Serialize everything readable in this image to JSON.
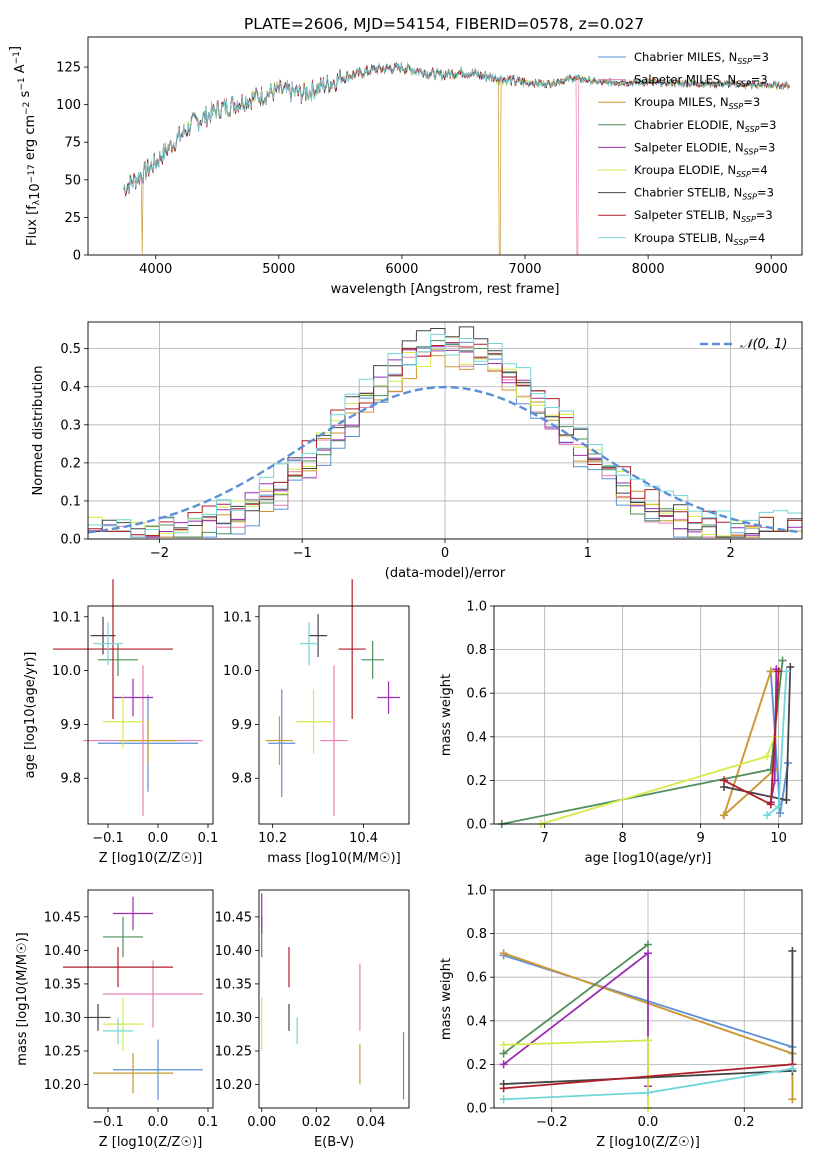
{
  "figure": {
    "title": "PLATE=2606, MJD=54154, FIBERID=0578, z=0.027"
  },
  "models": [
    {
      "name": "Chabrier MILES",
      "nssp": "3",
      "color": "#5b8fd6"
    },
    {
      "name": "Salpeter MILES",
      "nssp": "3",
      "color": "#e87fb3"
    },
    {
      "name": "Kroupa MILES",
      "nssp": "3",
      "color": "#c99a2e"
    },
    {
      "name": "Chabrier ELODIE",
      "nssp": "3",
      "color": "#4f8f5a"
    },
    {
      "name": "Salpeter ELODIE",
      "nssp": "3",
      "color": "#9b2eb3"
    },
    {
      "name": "Kroupa ELODIE",
      "nssp": "4",
      "color": "#d7ea4a"
    },
    {
      "name": "Chabrier STELIB",
      "nssp": "3",
      "color": "#444444"
    },
    {
      "name": "Salpeter STELIB",
      "nssp": "3",
      "color": "#b01e2a"
    },
    {
      "name": "Kroupa STELIB",
      "nssp": "4",
      "color": "#72d6d8"
    }
  ],
  "chart_data": [
    {
      "id": "spectrum",
      "type": "line",
      "xlabel": "wavelength [Angstrom, rest frame]",
      "ylabel": "Flux [f_λ 10^-17 erg cm^-2 s^-1 A^-1]",
      "xlim": [
        3450,
        9250
      ],
      "ylim": [
        0,
        145
      ],
      "xticks": [
        4000,
        5000,
        6000,
        7000,
        8000,
        9000
      ],
      "yticks": [
        0,
        25,
        50,
        75,
        100,
        125
      ],
      "wave_range": [
        3740,
        9150
      ],
      "continuum": [
        [
          3740,
          45
        ],
        [
          3900,
          55
        ],
        [
          4000,
          62
        ],
        [
          4100,
          72
        ],
        [
          4300,
          88
        ],
        [
          4500,
          97
        ],
        [
          4700,
          103
        ],
        [
          5000,
          110
        ],
        [
          5200,
          108
        ],
        [
          5500,
          118
        ],
        [
          5800,
          124
        ],
        [
          6000,
          125
        ],
        [
          6300,
          120
        ],
        [
          6500,
          122
        ],
        [
          6700,
          119
        ],
        [
          7000,
          115
        ],
        [
          7200,
          114
        ],
        [
          7400,
          118
        ],
        [
          7600,
          115
        ],
        [
          8000,
          115
        ],
        [
          8500,
          114
        ],
        [
          9000,
          113
        ],
        [
          9150,
          113
        ]
      ],
      "dropouts": [
        {
          "x": 3890,
          "model": "Kroupa MILES"
        },
        {
          "x": 6795,
          "model": "Kroupa MILES"
        },
        {
          "x": 7425,
          "model": "Salpeter MILES"
        }
      ],
      "grid": false,
      "legend": "upper-right"
    },
    {
      "id": "residuals",
      "type": "histogram",
      "xlabel": "(data-model)/error",
      "ylabel": "Normed distribution",
      "xlim": [
        -2.5,
        2.5
      ],
      "ylim": [
        0,
        0.57
      ],
      "xticks": [
        -2,
        -1,
        0,
        1,
        2
      ],
      "yticks": [
        0,
        0.1,
        0.2,
        0.3,
        0.4,
        0.5
      ],
      "bin_width": 0.1,
      "gaussian_label": "𝒩(0, 1)",
      "grid": true,
      "legend": "upper-right"
    },
    {
      "id": "age_vs_Z",
      "type": "scatter",
      "xlabel": "Z [log10(Z/Z☉)]",
      "ylabel": "age [log10(age/yr)]",
      "xlim": [
        -0.14,
        0.11
      ],
      "ylim": [
        9.715,
        10.12
      ],
      "xticks": [
        -0.1,
        0.0,
        0.1
      ],
      "yticks": [
        9.8,
        9.9,
        10.0,
        10.1
      ],
      "points": [
        {
          "x": -0.02,
          "y": 9.865,
          "xerr": 0.1,
          "yerr": 0.09
        },
        {
          "x": -0.03,
          "y": 9.87,
          "xerr": 0.12,
          "yerr": 0.14
        },
        {
          "x": -0.02,
          "y": 9.87,
          "xerr": 0.06,
          "yerr": 0.04
        },
        {
          "x": -0.08,
          "y": 10.02,
          "xerr": 0.04,
          "yerr": 0.03
        },
        {
          "x": -0.05,
          "y": 9.95,
          "xerr": 0.04,
          "yerr": 0.035
        },
        {
          "x": -0.07,
          "y": 9.905,
          "xerr": 0.04,
          "yerr": 0.05
        },
        {
          "x": -0.11,
          "y": 10.065,
          "xerr": 0.025,
          "yerr": 0.035
        },
        {
          "x": -0.09,
          "y": 10.04,
          "xerr": 0.12,
          "yerr": 0.13
        },
        {
          "x": -0.1,
          "y": 10.05,
          "xerr": 0.03,
          "yerr": 0.04
        }
      ]
    },
    {
      "id": "age_vs_mass",
      "type": "scatter",
      "xlabel": "mass [log10(M/M☉)]",
      "ylabel": "",
      "xlim": [
        10.17,
        10.5
      ],
      "ylim": [
        9.715,
        10.12
      ],
      "xticks": [
        10.2,
        10.4
      ],
      "yticks": [
        9.8,
        9.9,
        10.0,
        10.1
      ],
      "points": [
        {
          "x": 10.22,
          "y": 9.865,
          "xerr": 0.03,
          "yerr": 0.1
        },
        {
          "x": 10.335,
          "y": 9.87,
          "xerr": 0.03,
          "yerr": 0.14
        },
        {
          "x": 10.215,
          "y": 9.87,
          "xerr": 0.03,
          "yerr": 0.045
        },
        {
          "x": 10.42,
          "y": 10.02,
          "xerr": 0.025,
          "yerr": 0.035
        },
        {
          "x": 10.455,
          "y": 9.95,
          "xerr": 0.025,
          "yerr": 0.03
        },
        {
          "x": 10.29,
          "y": 9.905,
          "xerr": 0.04,
          "yerr": 0.06
        },
        {
          "x": 10.3,
          "y": 10.065,
          "xerr": 0.02,
          "yerr": 0.04
        },
        {
          "x": 10.375,
          "y": 10.04,
          "xerr": 0.03,
          "yerr": 0.13
        },
        {
          "x": 10.28,
          "y": 10.05,
          "xerr": 0.02,
          "yerr": 0.04
        }
      ]
    },
    {
      "id": "weight_vs_age",
      "type": "line",
      "xlabel": "age [log10(age/yr)]",
      "ylabel": "mass weight",
      "xlim": [
        6.35,
        10.3
      ],
      "ylim": [
        0,
        1
      ],
      "xticks": [
        7,
        8,
        9,
        10
      ],
      "yticks": [
        0,
        0.2,
        0.4,
        0.6,
        0.8,
        1.0
      ],
      "grid": true,
      "series": [
        {
          "model": "Chabrier MILES",
          "x": [
            9.9,
            10.02,
            10.12
          ],
          "y": [
            0.7,
            0.05,
            0.28
          ]
        },
        {
          "model": "Salpeter MILES",
          "x": [
            9.9,
            9.3,
            9.95
          ],
          "y": [
            0.7,
            0.04,
            0.25
          ]
        },
        {
          "model": "Kroupa MILES",
          "x": [
            9.9,
            9.3,
            9.95
          ],
          "y": [
            0.7,
            0.04,
            0.25
          ]
        },
        {
          "model": "Chabrier ELODIE",
          "x": [
            6.45,
            9.9,
            10.05
          ],
          "y": [
            0.0,
            0.25,
            0.75
          ]
        },
        {
          "model": "Salpeter ELODIE",
          "x": [
            9.9,
            9.95,
            9.97
          ],
          "y": [
            0.1,
            0.2,
            0.71
          ]
        },
        {
          "model": "Kroupa ELODIE",
          "x": [
            6.95,
            9.85,
            9.95
          ],
          "y": [
            0.0,
            0.31,
            0.4
          ]
        },
        {
          "model": "Chabrier STELIB",
          "x": [
            9.3,
            10.1,
            10.15
          ],
          "y": [
            0.17,
            0.11,
            0.72
          ]
        },
        {
          "model": "Salpeter STELIB",
          "x": [
            9.3,
            9.9,
            10.0
          ],
          "y": [
            0.2,
            0.09,
            0.7
          ]
        },
        {
          "model": "Kroupa STELIB",
          "x": [
            9.85,
            10.0,
            10.1
          ],
          "y": [
            0.04,
            0.08,
            0.7
          ]
        }
      ]
    },
    {
      "id": "mass_vs_Z",
      "type": "scatter",
      "xlabel": "Z [log10(Z/Z☉)]",
      "ylabel": "mass [log10(M/M☉)]",
      "xlim": [
        -0.14,
        0.11
      ],
      "ylim": [
        10.165,
        10.49
      ],
      "xticks": [
        -0.1,
        0.0,
        0.1
      ],
      "yticks": [
        10.2,
        10.25,
        10.3,
        10.35,
        10.4,
        10.45
      ],
      "points": [
        {
          "x": -0.0,
          "y": 10.222,
          "xerr": 0.09,
          "yerr": 0.045
        },
        {
          "x": -0.01,
          "y": 10.335,
          "xerr": 0.1,
          "yerr": 0.05
        },
        {
          "x": -0.05,
          "y": 10.217,
          "xerr": 0.08,
          "yerr": 0.03
        },
        {
          "x": -0.07,
          "y": 10.42,
          "xerr": 0.04,
          "yerr": 0.03
        },
        {
          "x": -0.05,
          "y": 10.455,
          "xerr": 0.04,
          "yerr": 0.025
        },
        {
          "x": -0.07,
          "y": 10.29,
          "xerr": 0.04,
          "yerr": 0.04
        },
        {
          "x": -0.12,
          "y": 10.3,
          "xerr": 0.025,
          "yerr": 0.02
        },
        {
          "x": -0.08,
          "y": 10.375,
          "xerr": 0.11,
          "yerr": 0.03
        },
        {
          "x": -0.08,
          "y": 10.28,
          "xerr": 0.03,
          "yerr": 0.02
        }
      ]
    },
    {
      "id": "mass_vs_ebv",
      "type": "scatter",
      "xlabel": "E(B-V)",
      "ylabel": "",
      "xlim": [
        -0.001,
        0.054
      ],
      "ylim": [
        10.165,
        10.49
      ],
      "xticks": [
        0.0,
        0.02,
        0.04
      ],
      "yticks": [
        10.2,
        10.25,
        10.3,
        10.35,
        10.4,
        10.45
      ],
      "points": [
        {
          "x": 0.052,
          "y": 10.228,
          "xerr": 0,
          "yerr": 0.05
        },
        {
          "x": 0.036,
          "y": 10.33,
          "xerr": 0,
          "yerr": 0.05
        },
        {
          "x": 0.036,
          "y": 10.23,
          "xerr": 0,
          "yerr": 0.03
        },
        {
          "x": 0.0,
          "y": 10.42,
          "xerr": 0,
          "yerr": 0.03
        },
        {
          "x": 0.0,
          "y": 10.455,
          "xerr": 0,
          "yerr": 0.03
        },
        {
          "x": 0.0,
          "y": 10.29,
          "xerr": 0,
          "yerr": 0.04
        },
        {
          "x": 0.01,
          "y": 10.3,
          "xerr": 0,
          "yerr": 0.02
        },
        {
          "x": 0.01,
          "y": 10.375,
          "xerr": 0,
          "yerr": 0.03
        },
        {
          "x": 0.013,
          "y": 10.28,
          "xerr": 0,
          "yerr": 0.02
        }
      ]
    },
    {
      "id": "weight_vs_Z",
      "type": "line",
      "xlabel": "Z [log10(Z/Z☉)]",
      "ylabel": "mass weight",
      "xlim": [
        -0.32,
        0.32
      ],
      "ylim": [
        0,
        1
      ],
      "xticks": [
        -0.2,
        0.0,
        0.2
      ],
      "yticks": [
        0,
        0.2,
        0.4,
        0.6,
        0.8,
        1.0
      ],
      "grid": true,
      "series": [
        {
          "model": "Chabrier MILES",
          "x": [
            -0.3,
            0.3
          ],
          "y": [
            0.7,
            0.28
          ]
        },
        {
          "model": "Salpeter MILES",
          "x": [
            -0.3,
            0.3,
            0.3
          ],
          "y": [
            0.71,
            0.25,
            0.04
          ]
        },
        {
          "model": "Kroupa MILES",
          "x": [
            -0.3,
            0.3,
            0.3
          ],
          "y": [
            0.71,
            0.25,
            0.04
          ]
        },
        {
          "model": "Chabrier ELODIE",
          "x": [
            -0.3,
            0.0
          ],
          "y": [
            0.25,
            0.75
          ]
        },
        {
          "model": "Salpeter ELODIE",
          "x": [
            -0.3,
            0.0,
            0.0
          ],
          "y": [
            0.2,
            0.71,
            0.1
          ]
        },
        {
          "model": "Kroupa ELODIE",
          "x": [
            -0.3,
            0.0,
            0.0
          ],
          "y": [
            0.29,
            0.31,
            0.0
          ]
        },
        {
          "model": "Chabrier STELIB",
          "x": [
            -0.3,
            0.3,
            0.3
          ],
          "y": [
            0.11,
            0.17,
            0.72
          ]
        },
        {
          "model": "Salpeter STELIB",
          "x": [
            -0.3,
            0.3
          ],
          "y": [
            0.09,
            0.2
          ]
        },
        {
          "model": "Kroupa STELIB",
          "x": [
            -0.3,
            0.0,
            0.3
          ],
          "y": [
            0.04,
            0.07,
            0.18
          ]
        }
      ]
    }
  ]
}
